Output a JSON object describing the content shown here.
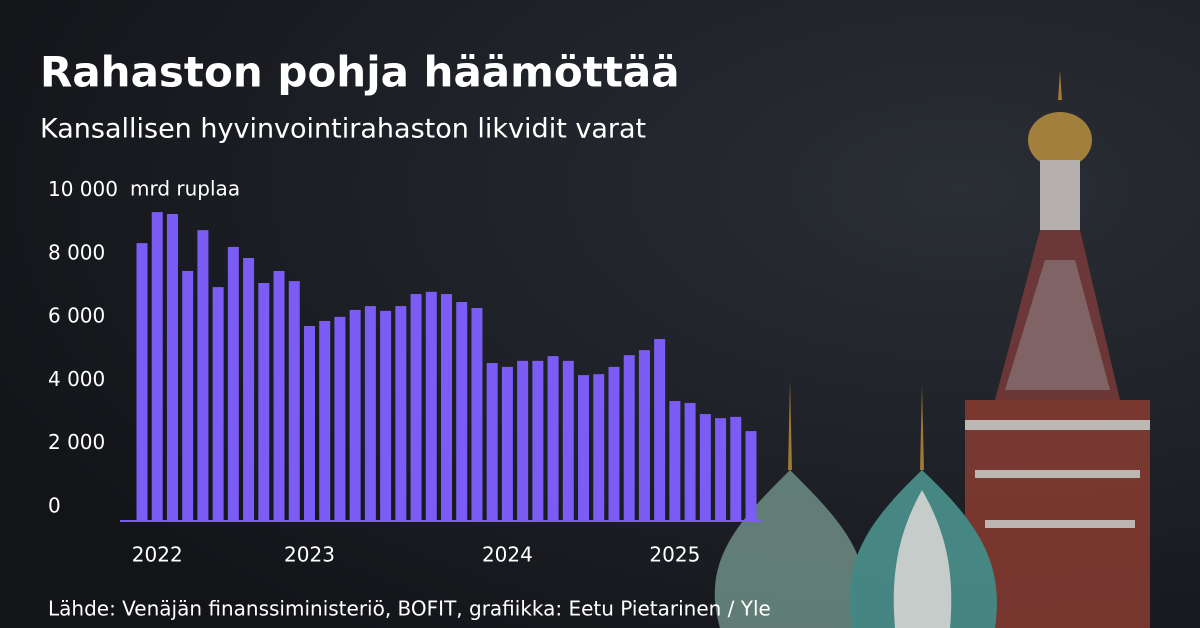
{
  "chart_data": {
    "type": "bar",
    "title": "Rahaston pohja häämöttää",
    "subtitle": "Kansallisen hyvinvointirahaston likvidit varat",
    "y_label": "mrd ruplaa",
    "source": "Lähde: Venäjän finanssiministeriö, BOFIT, grafiikka: Eetu Pietarinen / Yle",
    "color": "#7b5cf5",
    "categories": [
      null,
      "2022",
      null,
      null,
      null,
      null,
      null,
      null,
      null,
      null,
      null,
      "2023",
      null,
      null,
      null,
      null,
      null,
      null,
      null,
      null,
      null,
      null,
      null,
      null,
      "2024",
      null,
      null,
      null,
      null,
      null,
      null,
      null,
      null,
      null,
      null,
      "2025",
      null,
      null,
      null,
      null,
      null
    ],
    "values": [
      8780,
      9760,
      9700,
      7900,
      9190,
      7390,
      8660,
      8310,
      7520,
      7900,
      7580,
      6160,
      6320,
      6450,
      6670,
      6790,
      6640,
      6790,
      7170,
      7240,
      7170,
      6920,
      6730,
      4990,
      4870,
      5060,
      5060,
      5210,
      5060,
      4610,
      4640,
      4870,
      5240,
      5400,
      5750,
      3790,
      3730,
      3380,
      3250,
      3290,
      2840
    ],
    "ylim": [
      0,
      10000
    ],
    "yticks": [
      {
        "value": 0,
        "label": "0"
      },
      {
        "value": 2000,
        "label": "2 000"
      },
      {
        "value": 4000,
        "label": "4 000"
      },
      {
        "value": 6000,
        "label": "6 000"
      },
      {
        "value": 8000,
        "label": "8 000"
      },
      {
        "value": 10000,
        "label": "10 000"
      }
    ],
    "grid": false
  }
}
